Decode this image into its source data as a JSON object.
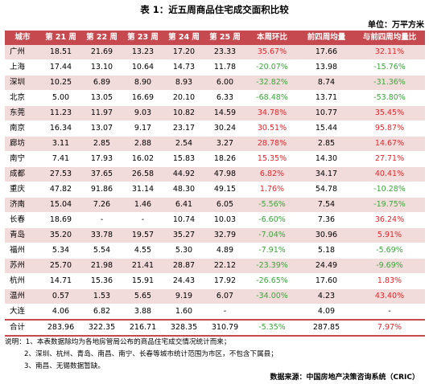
{
  "title": "表 1：近五周商品住宅成交面积比较",
  "unit": "单位：万平方米",
  "headers": [
    "城市",
    "第 21 周",
    "第 22 周",
    "第 23 周",
    "第 24 周",
    "第 25 周",
    "本周环比",
    "前四周均量",
    "与前四周均量比"
  ],
  "rows": [
    {
      "city": "广州",
      "w21": "18.51",
      "w22": "21.69",
      "w23": "13.23",
      "w24": "17.20",
      "w25": "23.33",
      "wow": "35.67%",
      "avg4": "17.66",
      "vsavg": "32.11%"
    },
    {
      "city": "上海",
      "w21": "17.44",
      "w22": "13.10",
      "w23": "10.64",
      "w24": "14.73",
      "w25": "11.78",
      "wow": "-20.07%",
      "avg4": "13.98",
      "vsavg": "-15.76%"
    },
    {
      "city": "深圳",
      "w21": "10.25",
      "w22": "6.89",
      "w23": "8.90",
      "w24": "8.93",
      "w25": "6.00",
      "wow": "-32.82%",
      "avg4": "8.74",
      "vsavg": "-31.36%"
    },
    {
      "city": "北京",
      "w21": "5.00",
      "w22": "13.05",
      "w23": "16.69",
      "w24": "20.10",
      "w25": "6.33",
      "wow": "-68.48%",
      "avg4": "13.71",
      "vsavg": "-53.80%"
    },
    {
      "city": "东莞",
      "w21": "11.23",
      "w22": "11.97",
      "w23": "9.03",
      "w24": "10.82",
      "w25": "14.59",
      "wow": "34.78%",
      "avg4": "10.77",
      "vsavg": "35.45%"
    },
    {
      "city": "南京",
      "w21": "16.34",
      "w22": "13.07",
      "w23": "9.17",
      "w24": "23.17",
      "w25": "30.24",
      "wow": "30.51%",
      "avg4": "15.44",
      "vsavg": "95.87%"
    },
    {
      "city": "廊坊",
      "w21": "3.11",
      "w22": "2.85",
      "w23": "2.88",
      "w24": "2.54",
      "w25": "3.27",
      "wow": "28.78%",
      "avg4": "2.85",
      "vsavg": "14.67%"
    },
    {
      "city": "南宁",
      "w21": "7.41",
      "w22": "17.93",
      "w23": "16.02",
      "w24": "15.83",
      "w25": "18.26",
      "wow": "15.35%",
      "avg4": "14.30",
      "vsavg": "27.71%"
    },
    {
      "city": "成都",
      "w21": "27.53",
      "w22": "37.65",
      "w23": "26.58",
      "w24": "44.92",
      "w25": "47.98",
      "wow": "6.82%",
      "avg4": "34.17",
      "vsavg": "40.41%"
    },
    {
      "city": "重庆",
      "w21": "47.82",
      "w22": "91.86",
      "w23": "31.14",
      "w24": "48.30",
      "w25": "49.15",
      "wow": "1.76%",
      "avg4": "54.78",
      "vsavg": "-10.28%"
    },
    {
      "city": "济南",
      "w21": "15.04",
      "w22": "7.26",
      "w23": "1.46",
      "w24": "6.41",
      "w25": "6.05",
      "wow": "-5.56%",
      "avg4": "7.54",
      "vsavg": "-19.75%"
    },
    {
      "city": "长春",
      "w21": "18.69",
      "w22": "-",
      "w23": "-",
      "w24": "10.74",
      "w25": "10.03",
      "wow": "-6.60%",
      "avg4": "7.36",
      "vsavg": "36.24%"
    },
    {
      "city": "青岛",
      "w21": "35.20",
      "w22": "33.78",
      "w23": "19.57",
      "w24": "35.27",
      "w25": "32.79",
      "wow": "-7.04%",
      "avg4": "30.96",
      "vsavg": "5.91%"
    },
    {
      "city": "福州",
      "w21": "5.34",
      "w22": "5.54",
      "w23": "4.55",
      "w24": "5.30",
      "w25": "4.89",
      "wow": "-7.91%",
      "avg4": "5.18",
      "vsavg": "-5.69%"
    },
    {
      "city": "苏州",
      "w21": "25.70",
      "w22": "21.98",
      "w23": "21.41",
      "w24": "28.87",
      "w25": "22.12",
      "wow": "-23.39%",
      "avg4": "24.49",
      "vsavg": "-9.69%"
    },
    {
      "city": "杭州",
      "w21": "14.71",
      "w22": "15.36",
      "w23": "15.91",
      "w24": "24.43",
      "w25": "17.92",
      "wow": "-26.65%",
      "avg4": "17.60",
      "vsavg": "1.83%"
    },
    {
      "city": "温州",
      "w21": "0.57",
      "w22": "1.53",
      "w23": "5.65",
      "w24": "9.19",
      "w25": "6.07",
      "wow": "-34.00%",
      "avg4": "4.23",
      "vsavg": "43.40%"
    },
    {
      "city": "大连",
      "w21": "4.06",
      "w22": "6.82",
      "w23": "3.88",
      "w24": "1.60",
      "w25": "-",
      "wow": "",
      "avg4": "4.09",
      "vsavg": "-"
    }
  ],
  "total": {
    "city": "合计",
    "w21": "283.96",
    "w22": "322.35",
    "w23": "216.71",
    "w24": "328.35",
    "w25": "310.79",
    "wow": "-5.35%",
    "avg4": "287.85",
    "vsavg": "7.97%"
  },
  "notes": {
    "n1": "说明：1、本表数据除均为各地房管局公布的商品住宅成交情况统计而来；",
    "n2": "2、深圳、杭州、青岛、南昌、南宁、长春等城市统计范围为市区，不包含下属县；",
    "n3": "3、南昌、无锡数据暂缺。"
  },
  "source": "数据来源：中国房地产决策咨询系统（CRIC）",
  "colors": {
    "header_bg": "#c6494f",
    "pink_row": "#f2dcdb",
    "positive": "#e3262a",
    "negative": "#3aa63a"
  }
}
